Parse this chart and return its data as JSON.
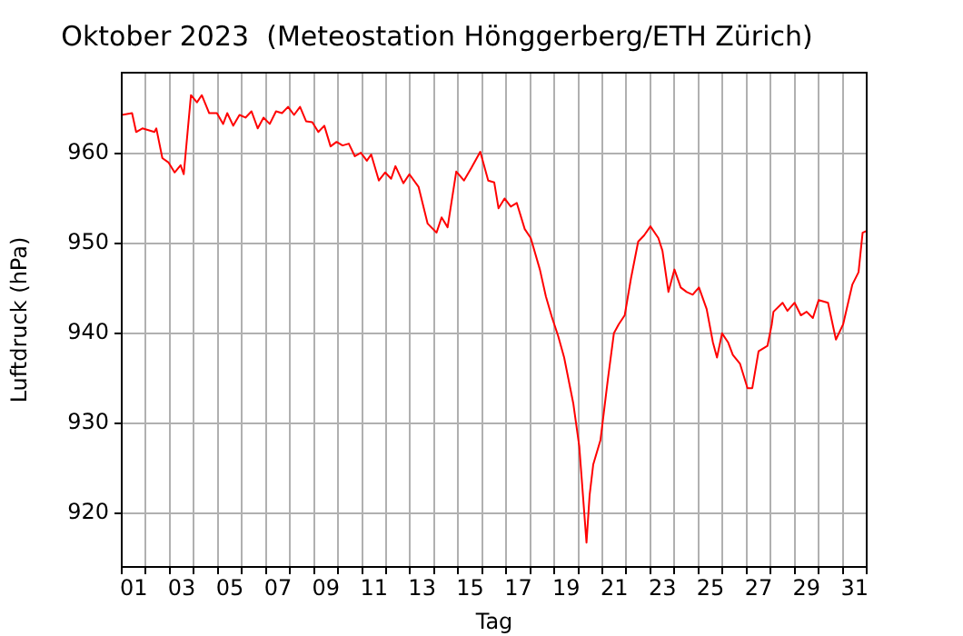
{
  "chart_data": {
    "type": "line",
    "title": "Oktober 2023  (Meteostation Hönggerberg/ETH Zürich)",
    "xlabel": "Tag",
    "ylabel": "Luftdruck (hPa)",
    "series": [
      {
        "color": "#ff0000",
        "x": [
          1.0,
          1.43,
          1.6,
          1.86,
          2.36,
          2.44,
          2.69,
          2.95,
          3.2,
          3.45,
          3.58,
          3.88,
          4.13,
          4.33,
          4.64,
          4.96,
          5.22,
          5.39,
          5.64,
          5.9,
          6.15,
          6.4,
          6.66,
          6.9,
          7.16,
          7.42,
          7.67,
          7.92,
          8.17,
          8.42,
          8.67,
          8.93,
          9.18,
          9.43,
          9.69,
          9.94,
          10.19,
          10.45,
          10.7,
          10.95,
          11.2,
          11.38,
          11.7,
          11.96,
          12.21,
          12.39,
          12.72,
          12.97,
          13.35,
          13.73,
          14.1,
          14.31,
          14.56,
          14.92,
          15.24,
          15.55,
          15.92,
          16.25,
          16.5,
          16.68,
          16.93,
          17.19,
          17.44,
          17.77,
          18.02,
          18.4,
          18.65,
          18.9,
          19.16,
          19.41,
          19.79,
          20.04,
          20.34,
          20.47,
          20.62,
          20.92,
          21.23,
          21.48,
          21.68,
          21.93,
          22.19,
          22.49,
          22.74,
          23.0,
          23.33,
          23.5,
          23.75,
          24.0,
          24.26,
          24.51,
          24.76,
          25.02,
          25.34,
          25.6,
          25.77,
          25.98,
          26.23,
          26.43,
          26.73,
          27.04,
          27.24,
          27.5,
          27.87,
          28.05,
          28.12,
          28.5,
          28.7,
          29.0,
          29.26,
          29.5,
          29.76,
          30.0,
          30.39,
          30.72,
          31.02,
          31.4,
          31.66,
          31.83,
          32.0
        ],
        "values": [
          964.3,
          964.5,
          962.4,
          962.8,
          962.4,
          962.8,
          959.5,
          959.0,
          957.9,
          958.7,
          957.7,
          966.5,
          965.7,
          966.5,
          964.5,
          964.5,
          963.3,
          964.5,
          963.1,
          964.3,
          964.0,
          964.7,
          962.8,
          964.0,
          963.3,
          964.7,
          964.5,
          965.2,
          964.3,
          965.2,
          963.6,
          963.5,
          962.4,
          963.1,
          960.8,
          961.3,
          960.9,
          961.1,
          959.7,
          960.1,
          959.2,
          959.9,
          957.0,
          957.9,
          957.2,
          958.6,
          956.7,
          957.7,
          956.3,
          952.2,
          951.2,
          952.9,
          951.8,
          958.0,
          957.0,
          958.4,
          960.2,
          957.0,
          956.8,
          953.9,
          955.0,
          954.1,
          954.5,
          951.6,
          950.6,
          947.1,
          944.1,
          941.8,
          939.7,
          937.3,
          932.2,
          927.4,
          916.7,
          922.0,
          925.4,
          928.1,
          934.9,
          940.0,
          941.0,
          942.0,
          946.1,
          950.2,
          950.9,
          951.9,
          950.6,
          949.2,
          944.6,
          947.1,
          945.1,
          944.6,
          944.3,
          945.1,
          942.7,
          939.0,
          937.3,
          940.0,
          939.0,
          937.6,
          936.6,
          933.9,
          933.9,
          938.0,
          938.6,
          941.0,
          942.4,
          943.4,
          942.5,
          943.4,
          942.0,
          942.4,
          941.7,
          943.7,
          943.4,
          939.3,
          941.0,
          945.4,
          946.8,
          951.2,
          951.4
        ]
      }
    ],
    "xlim": [
      1,
      32
    ],
    "xticks": [
      {
        "value": 1,
        "label": null
      },
      {
        "value": 1.5,
        "label": "01"
      },
      {
        "value": 2,
        "label": null
      },
      {
        "value": 3,
        "label": null
      },
      {
        "value": 3.5,
        "label": "03"
      },
      {
        "value": 4,
        "label": null
      },
      {
        "value": 5,
        "label": null
      },
      {
        "value": 5.5,
        "label": "05"
      },
      {
        "value": 6,
        "label": null
      },
      {
        "value": 7,
        "label": null
      },
      {
        "value": 7.5,
        "label": "07"
      },
      {
        "value": 8,
        "label": null
      },
      {
        "value": 9,
        "label": null
      },
      {
        "value": 9.5,
        "label": "09"
      },
      {
        "value": 10,
        "label": null
      },
      {
        "value": 11,
        "label": null
      },
      {
        "value": 11.5,
        "label": "11"
      },
      {
        "value": 12,
        "label": null
      },
      {
        "value": 13,
        "label": null
      },
      {
        "value": 13.5,
        "label": "13"
      },
      {
        "value": 14,
        "label": null
      },
      {
        "value": 15,
        "label": null
      },
      {
        "value": 15.5,
        "label": "15"
      },
      {
        "value": 16,
        "label": null
      },
      {
        "value": 17,
        "label": null
      },
      {
        "value": 17.5,
        "label": "17"
      },
      {
        "value": 18,
        "label": null
      },
      {
        "value": 19,
        "label": null
      },
      {
        "value": 19.5,
        "label": "19"
      },
      {
        "value": 20,
        "label": null
      },
      {
        "value": 21,
        "label": null
      },
      {
        "value": 21.5,
        "label": "21"
      },
      {
        "value": 22,
        "label": null
      },
      {
        "value": 23,
        "label": null
      },
      {
        "value": 23.5,
        "label": "23"
      },
      {
        "value": 24,
        "label": null
      },
      {
        "value": 25,
        "label": null
      },
      {
        "value": 25.5,
        "label": "25"
      },
      {
        "value": 26,
        "label": null
      },
      {
        "value": 27,
        "label": null
      },
      {
        "value": 27.5,
        "label": "27"
      },
      {
        "value": 28,
        "label": null
      },
      {
        "value": 29,
        "label": null
      },
      {
        "value": 29.5,
        "label": "29"
      },
      {
        "value": 30,
        "label": null
      },
      {
        "value": 31,
        "label": null
      },
      {
        "value": 31.5,
        "label": "31"
      },
      {
        "value": 32,
        "label": null
      }
    ],
    "ylim": [
      914,
      969
    ],
    "yticks": [
      920,
      930,
      940,
      950,
      960
    ],
    "grid": true,
    "marker": "none",
    "line_style": "solid"
  }
}
